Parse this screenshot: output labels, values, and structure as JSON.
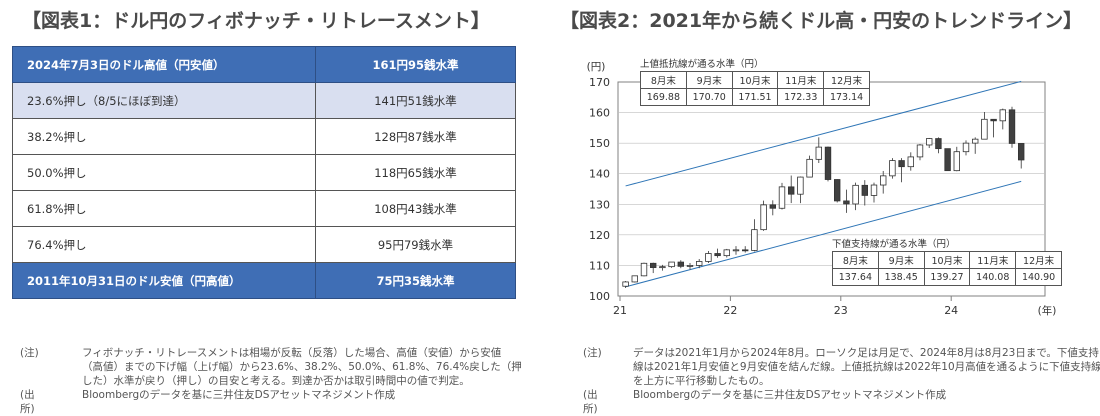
{
  "left": {
    "title": "【図表1：ドル円のフィボナッチ・リトレースメント】",
    "rows": [
      {
        "label": "2024年7月3日のドル高値（円安値）",
        "value": "161円95銭水準",
        "style": "hdr"
      },
      {
        "label": "23.6%押し（8/5にほぼ到達）",
        "value": "141円51銭水準",
        "style": "hi"
      },
      {
        "label": "38.2%押し",
        "value": "128円87銭水準",
        "style": "norm"
      },
      {
        "label": "50.0%押し",
        "value": "118円65銭水準",
        "style": "norm"
      },
      {
        "label": "61.8%押し",
        "value": "108円43銭水準",
        "style": "norm"
      },
      {
        "label": "76.4%押し",
        "value": "95円79銭水準",
        "style": "norm"
      },
      {
        "label": "2011年10月31日のドル安値（円高値）",
        "value": "75円35銭水準",
        "style": "hdr"
      }
    ],
    "note_label": "(注)",
    "note": "フィボナッチ・リトレースメントは相場が反転（反落）した場合、高値（安値）から安値（高値）までの下げ幅（上げ幅）から23.6%、38.2%、50.0%、61.8%、76.4%戻した（押した）水準が戻り（押し）の目安と考える。到達か否かは取引時間中の値で判定。",
    "source_label": "(出所)",
    "source": "Bloombergのデータを基に三井住友DSアセットマネジメント作成"
  },
  "right": {
    "title": "【図表2：2021年から続くドル高・円安のトレンドライン】",
    "note_label": "(注)",
    "note": "データは2021年1月から2024年8月。ローソク足は月足で、2024年8月は8月23日まで。下値支持線は2021年1月安値と9月安値を結んだ線。上値抵抗線は2022年10月高値を通るように下値支持線を上方に平行移動したもの。",
    "source_label": "(出所)",
    "source": "Bloombergのデータを基に三井住友DSアセットマネジメント作成"
  },
  "chart_data": {
    "type": "candlestick",
    "y_unit": "(円)",
    "x_unit": "(年)",
    "ylim": [
      100,
      170
    ],
    "y_ticks": [
      100,
      110,
      120,
      130,
      140,
      150,
      160,
      170
    ],
    "x_ticks": [
      "21",
      "22",
      "23",
      "24"
    ],
    "months": [
      "2021-01",
      "2021-02",
      "2021-03",
      "2021-04",
      "2021-05",
      "2021-06",
      "2021-07",
      "2021-08",
      "2021-09",
      "2021-10",
      "2021-11",
      "2021-12",
      "2022-01",
      "2022-02",
      "2022-03",
      "2022-04",
      "2022-05",
      "2022-06",
      "2022-07",
      "2022-08",
      "2022-09",
      "2022-10",
      "2022-11",
      "2022-12",
      "2023-01",
      "2023-02",
      "2023-03",
      "2023-04",
      "2023-05",
      "2023-06",
      "2023-07",
      "2023-08",
      "2023-09",
      "2023-10",
      "2023-11",
      "2023-12",
      "2024-01",
      "2024-02",
      "2024-03",
      "2024-04",
      "2024-05",
      "2024-06",
      "2024-07",
      "2024-08"
    ],
    "ohlc": [
      [
        103.2,
        104.9,
        102.6,
        104.6
      ],
      [
        104.6,
        106.7,
        104.4,
        106.6
      ],
      [
        106.6,
        110.9,
        106.4,
        110.7
      ],
      [
        110.7,
        110.9,
        107.5,
        109.3
      ],
      [
        109.3,
        110.2,
        108.3,
        109.6
      ],
      [
        109.6,
        111.1,
        109.2,
        111.1
      ],
      [
        111.1,
        111.7,
        109.1,
        109.7
      ],
      [
        109.7,
        110.8,
        108.7,
        110.0
      ],
      [
        110.0,
        112.1,
        109.1,
        111.3
      ],
      [
        111.3,
        114.7,
        110.8,
        113.9
      ],
      [
        113.9,
        115.5,
        112.5,
        113.2
      ],
      [
        113.2,
        115.4,
        112.6,
        115.1
      ],
      [
        115.1,
        116.3,
        113.5,
        115.1
      ],
      [
        115.1,
        116.3,
        114.2,
        114.9
      ],
      [
        114.9,
        125.1,
        114.6,
        121.7
      ],
      [
        121.7,
        131.2,
        121.3,
        129.8
      ],
      [
        129.8,
        131.3,
        126.4,
        128.7
      ],
      [
        128.7,
        137.0,
        128.3,
        135.7
      ],
      [
        135.7,
        139.4,
        130.4,
        133.3
      ],
      [
        133.3,
        139.1,
        130.4,
        138.9
      ],
      [
        138.9,
        145.9,
        138.9,
        144.7
      ],
      [
        144.7,
        151.9,
        143.5,
        148.7
      ],
      [
        148.7,
        148.9,
        137.5,
        138.1
      ],
      [
        138.1,
        138.2,
        130.6,
        131.1
      ],
      [
        131.1,
        134.8,
        127.2,
        130.1
      ],
      [
        130.1,
        137.1,
        128.1,
        136.2
      ],
      [
        136.2,
        137.9,
        129.6,
        132.9
      ],
      [
        132.9,
        137.1,
        130.6,
        136.3
      ],
      [
        136.3,
        140.9,
        133.5,
        139.3
      ],
      [
        139.3,
        145.1,
        138.4,
        144.3
      ],
      [
        144.3,
        145.1,
        137.2,
        142.3
      ],
      [
        142.3,
        147.0,
        141.0,
        145.5
      ],
      [
        145.5,
        149.7,
        144.4,
        149.4
      ],
      [
        149.4,
        151.7,
        148.4,
        151.5
      ],
      [
        151.5,
        151.9,
        146.7,
        148.2
      ],
      [
        148.2,
        148.0,
        140.9,
        141.0
      ],
      [
        141.0,
        148.8,
        140.8,
        147.2
      ],
      [
        147.2,
        150.9,
        146.0,
        150.0
      ],
      [
        150.0,
        151.9,
        146.5,
        151.3
      ],
      [
        151.3,
        160.2,
        151.2,
        157.8
      ],
      [
        157.8,
        157.9,
        151.9,
        157.3
      ],
      [
        157.3,
        161.3,
        154.5,
        160.9
      ],
      [
        160.9,
        161.9,
        148.5,
        149.9
      ],
      [
        149.9,
        149.4,
        141.7,
        144.5
      ]
    ],
    "support_line": {
      "x": [
        "2021-01",
        "2024-08"
      ],
      "y": [
        103.0,
        137.5
      ]
    },
    "resistance_line": {
      "x": [
        "2021-01",
        "2024-08"
      ],
      "y": [
        136.0,
        170.2
      ]
    },
    "upper_table": {
      "title": "上値抵抗線が通る水準（円）",
      "headers": [
        "8月末",
        "9月末",
        "10月末",
        "11月末",
        "12月末"
      ],
      "values": [
        "169.88",
        "170.70",
        "171.51",
        "172.33",
        "173.14"
      ]
    },
    "lower_table": {
      "title": "下値支持線が通る水準（円）",
      "headers": [
        "8月末",
        "9月末",
        "10月末",
        "11月末",
        "12月末"
      ],
      "values": [
        "137.64",
        "138.45",
        "139.27",
        "140.08",
        "140.90"
      ]
    },
    "colors": {
      "up": "#ffffff",
      "down": "#404040",
      "trend": "#2e75b6",
      "grid": "#bfbfbf"
    }
  }
}
